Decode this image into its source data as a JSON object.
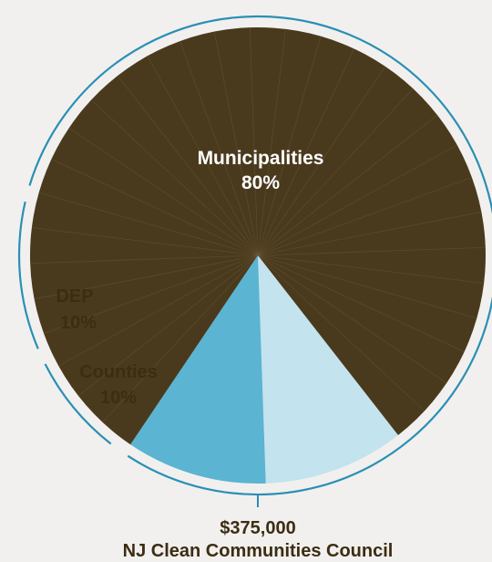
{
  "chart_data": {
    "type": "pie",
    "slices": [
      {
        "label": "Municipalities",
        "percent_label": "80%",
        "value": 80,
        "color": "#4a3a1d",
        "label_color": "#ffffff"
      },
      {
        "label": "Counties",
        "percent_label": "10%",
        "value": 10,
        "color": "#c3e3ee",
        "label_color": "#3c2d12"
      },
      {
        "label": "DEP",
        "percent_label": "10%",
        "value": 10,
        "color": "#5ab4d2",
        "label_color": "#3c2d12"
      }
    ],
    "total_amount": "$375,000",
    "source_label": "NJ Clean Communities Council",
    "ring_color": "#2a8fb5",
    "text_color": "#3c2d12"
  }
}
